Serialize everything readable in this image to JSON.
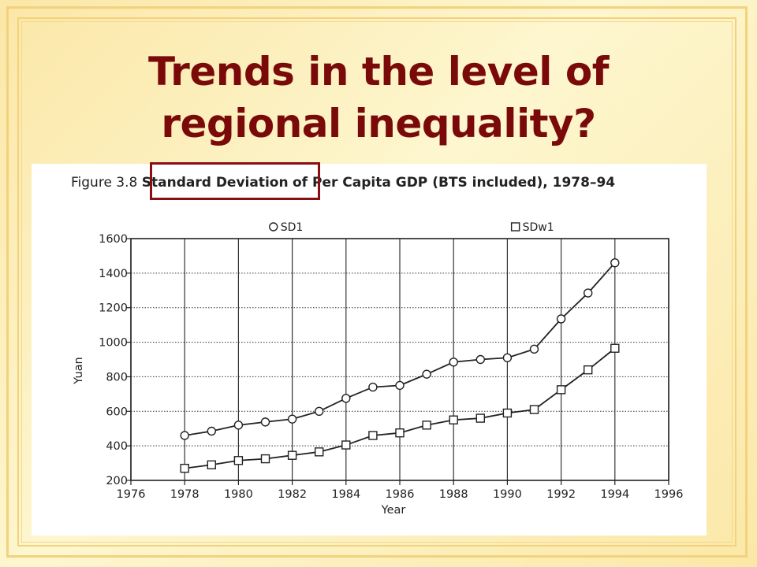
{
  "slide": {
    "title_line1": "Trends in the level of",
    "title_line2": "regional inequality?"
  },
  "figure": {
    "caption_prefix": "Figure 3.8",
    "caption_highlight": "Standard Deviation",
    "caption_suffix": "of Per Capita GDP (BTS included), 1978–94"
  },
  "colors": {
    "title": "#7a0a0a",
    "highlight_box": "#8a0f14",
    "background": "#fbe7a7"
  },
  "chart_data": {
    "type": "line",
    "title": "Standard Deviation of Per Capita GDP (BTS included), 1978–94",
    "xlabel": "Year",
    "ylabel": "Yuan",
    "xlim": [
      1976,
      1996
    ],
    "ylim": [
      200,
      1600
    ],
    "xticks": [
      1976,
      1978,
      1980,
      1982,
      1984,
      1986,
      1988,
      1990,
      1992,
      1994,
      1996
    ],
    "yticks": [
      200,
      400,
      600,
      800,
      1000,
      1200,
      1400,
      1600
    ],
    "grid": true,
    "legend_position": "top",
    "x": [
      1978,
      1979,
      1980,
      1981,
      1982,
      1983,
      1984,
      1985,
      1986,
      1987,
      1988,
      1989,
      1990,
      1991,
      1992,
      1993,
      1994
    ],
    "series": [
      {
        "name": "SD1",
        "marker": "circle",
        "values": [
          460,
          485,
          520,
          538,
          555,
          600,
          675,
          740,
          750,
          815,
          885,
          900,
          910,
          960,
          1135,
          1285,
          1460
        ]
      },
      {
        "name": "SDw1",
        "marker": "square",
        "values": [
          270,
          290,
          315,
          325,
          345,
          365,
          405,
          460,
          475,
          520,
          550,
          560,
          590,
          610,
          725,
          840,
          965
        ]
      }
    ]
  }
}
